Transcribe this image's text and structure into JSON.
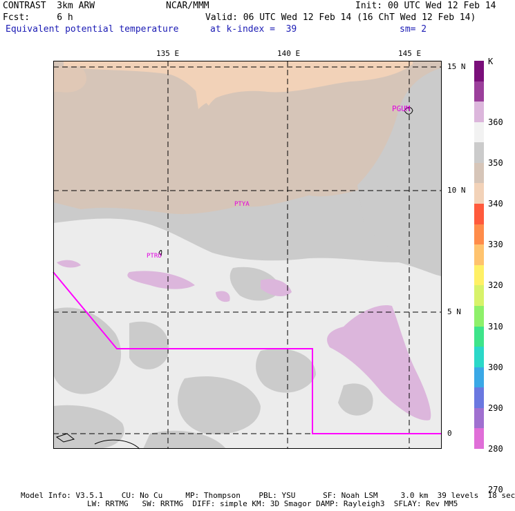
{
  "header": {
    "line1_left": "CONTRAST  3km ARW",
    "line1_mid": "NCAR/MMM",
    "line1_right": "Init: 00 UTC Wed 12 Feb 14",
    "line2_left": "Fcst:     6 h",
    "line2_right": "Valid: 06 UTC Wed 12 Feb 14 (16 ChT Wed 12 Feb 14)",
    "line3_left": "Equivalent potential temperature",
    "line3_mid": "at k-index =  39",
    "line3_right": "sm= 2"
  },
  "map": {
    "lon_labels": [
      "135 E",
      "140 E",
      "145 E"
    ],
    "lat_labels": [
      "15 N",
      "10 N",
      "5 N",
      "0"
    ],
    "stations": [
      "PGUM",
      "PTYA",
      "PTRO"
    ],
    "colors": {
      "land_peach": "#f2d2b8",
      "tan_340": "#d6c5b8",
      "gray_350": "#cbcbcb",
      "light_360": "#ececec",
      "lavender": "#dcb6dc",
      "magenta": "#ff00ff"
    }
  },
  "colorbar": {
    "unit": "K",
    "ticks": [
      "360",
      "350",
      "340",
      "330",
      "320",
      "310",
      "300",
      "290",
      "280",
      "270"
    ],
    "colors": [
      "#7a0f7a",
      "#9b3f9b",
      "#dcb6dc",
      "#f2f2f2",
      "#cbcbcb",
      "#d6c5b8",
      "#f2d2b8",
      "#ff5a3c",
      "#ff8c4a",
      "#ffc36e",
      "#fff066",
      "#d8f26a",
      "#8ef06a",
      "#3ee48a",
      "#2bd8c8",
      "#3aa8e6",
      "#6a78e0",
      "#a070d0",
      "#e06ed8"
    ]
  },
  "footer": {
    "line1": "Model Info: V3.5.1    CU: No Cu     MP: Thompson    PBL: YSU      SF: Noah LSM     3.0 km  39 levels  18 sec",
    "line2": "LW: RRTMG   SW: RRTMG  DIFF: simple KM: 3D Smagor DAMP: Rayleigh3  SFLAY: Rev MM5"
  }
}
